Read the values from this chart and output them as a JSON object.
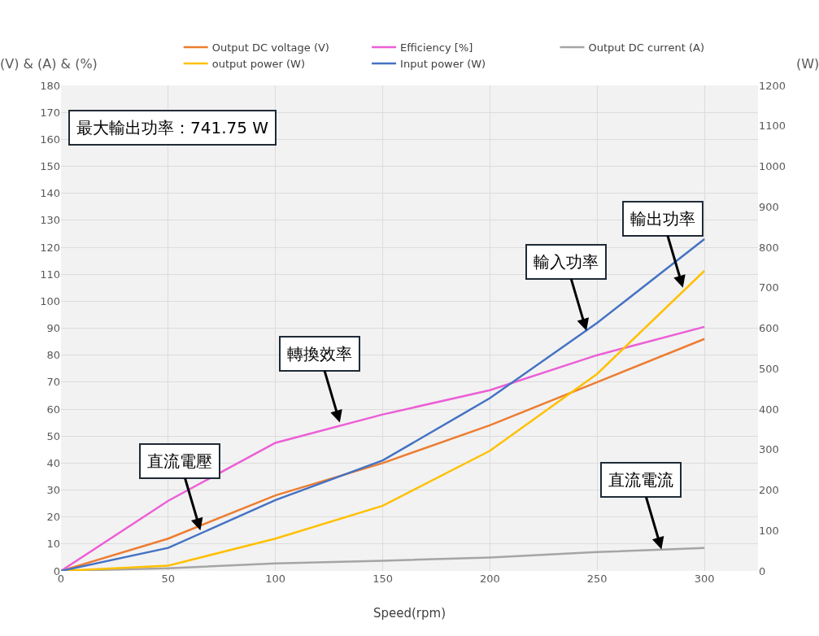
{
  "chart_data": {
    "type": "line",
    "xlabel": "Speed(rpm)",
    "ylabel": "(V) & (A) & (%)",
    "y2label": "(W)",
    "x": [
      0,
      50,
      100,
      150,
      200,
      250,
      300
    ],
    "series": [
      {
        "name": "Output DC voltage (V)",
        "color": "#ed7d31",
        "values": [
          0,
          12,
          28,
          40,
          54,
          70,
          86
        ]
      },
      {
        "name": "Efficiency [%]",
        "color": "#ec5fd6",
        "values": [
          0,
          26,
          47.5,
          58,
          67,
          80,
          90.5
        ]
      },
      {
        "name": "Output DC current (A)",
        "color": "#a5a5a5",
        "values": [
          0,
          1,
          2.8,
          3.8,
          5,
          7,
          8.5
        ]
      },
      {
        "name": "output power (W)",
        "color": "#ffc000",
        "axis": "y2",
        "values": [
          0,
          13,
          80,
          161,
          297,
          487,
          741.75
        ]
      },
      {
        "name": "Input power (W)",
        "color": "#4472c4",
        "axis": "y2",
        "values": [
          0,
          57,
          175,
          273,
          427,
          613,
          820
        ]
      }
    ],
    "xlim": [
      0,
      325
    ],
    "xticks": [
      0,
      50,
      100,
      150,
      200,
      250,
      300
    ],
    "ylim": [
      0,
      180
    ],
    "yticks": [
      0,
      10,
      20,
      30,
      40,
      50,
      60,
      70,
      80,
      90,
      100,
      110,
      120,
      130,
      140,
      150,
      160,
      170,
      180
    ],
    "y2lim": [
      0,
      1200
    ],
    "y2ticks": [
      0,
      100,
      200,
      300,
      400,
      500,
      600,
      700,
      800,
      900,
      1000,
      1100,
      1200
    ],
    "grid": true,
    "legend": "top",
    "marker": "none",
    "line_style": "solid",
    "annotations": [
      "最大輸出功率：741.75 W",
      {
        "text": "直流電壓",
        "x": 65,
        "y": 15
      },
      {
        "text": "轉換效率",
        "x": 130,
        "y": 55
      },
      {
        "text": "輸入功率",
        "x": 245,
        "y": 89
      },
      {
        "text": "輸出功率",
        "x": 290,
        "y": 105
      },
      {
        "text": "直流電流",
        "x": 280,
        "y": 8
      }
    ]
  }
}
